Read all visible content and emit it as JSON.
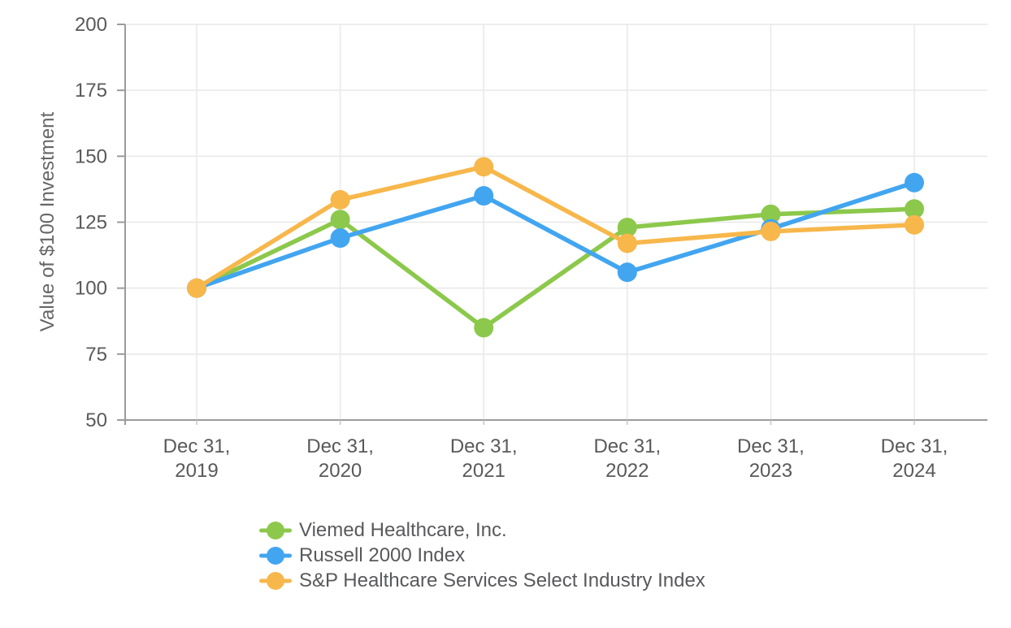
{
  "page": {
    "background": "#ffffff"
  },
  "chart_data": {
    "type": "line",
    "ylabel": "Value of $100 Investment",
    "ylim": [
      50,
      200
    ],
    "y_ticks": [
      200,
      175,
      150,
      125,
      100,
      75,
      50
    ],
    "categories": [
      "Dec 31, 2019",
      "Dec 31, 2020",
      "Dec 31, 2021",
      "Dec 31, 2022",
      "Dec 31, 2023",
      "Dec 31, 2024"
    ],
    "series": [
      {
        "name": "Viemed Healthcare, Inc.",
        "slug": "viemed-healthcare-inc",
        "color": "#8CC84B",
        "values": [
          100,
          126,
          85,
          123,
          128,
          130
        ]
      },
      {
        "name": "Russell 2000 Index",
        "slug": "russell-2000-index",
        "color": "#42A5F0",
        "values": [
          100,
          119,
          135,
          106,
          122.5,
          140
        ]
      },
      {
        "name": "S&P Healthcare Services Select Industry Index",
        "slug": "sp-healthcare-services-select-industry-index",
        "color": "#F7B74B",
        "values": [
          100,
          133.5,
          146,
          117,
          121.5,
          124
        ]
      }
    ],
    "grid": true,
    "marker": "circle",
    "legend_position": "bottom-left",
    "colors": {
      "axis": "#9B9B9B",
      "gridline": "#E8E8E8",
      "tick_text": "#595959",
      "axis_title_text": "#666666",
      "legend_text": "#58595B"
    }
  }
}
